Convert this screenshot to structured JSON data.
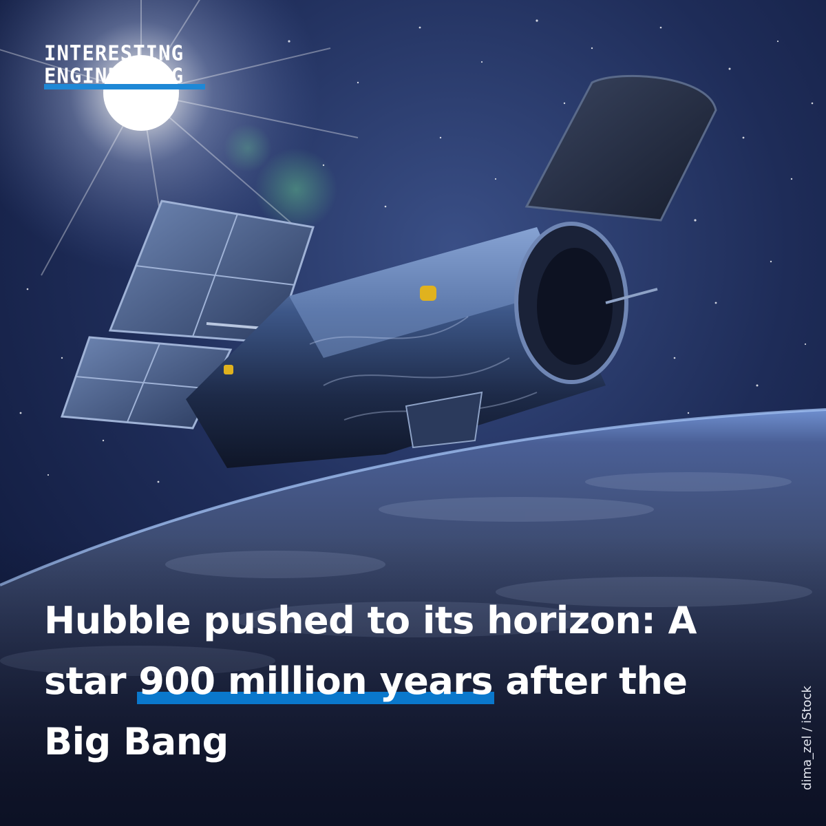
{
  "logo": {
    "line1": "INTERESTING",
    "line2": "ENGINEERING",
    "accent_color": "#1e88d6"
  },
  "headline": {
    "before": "Hubble pushed to its horizon: A star ",
    "highlight": "900 million years",
    "after": " after the Big Bang",
    "highlight_color": "#0a78cc"
  },
  "credit": "dima_zel / iStock",
  "image": {
    "subject": "hubble-telescope",
    "background": "space-earth-horizon"
  }
}
